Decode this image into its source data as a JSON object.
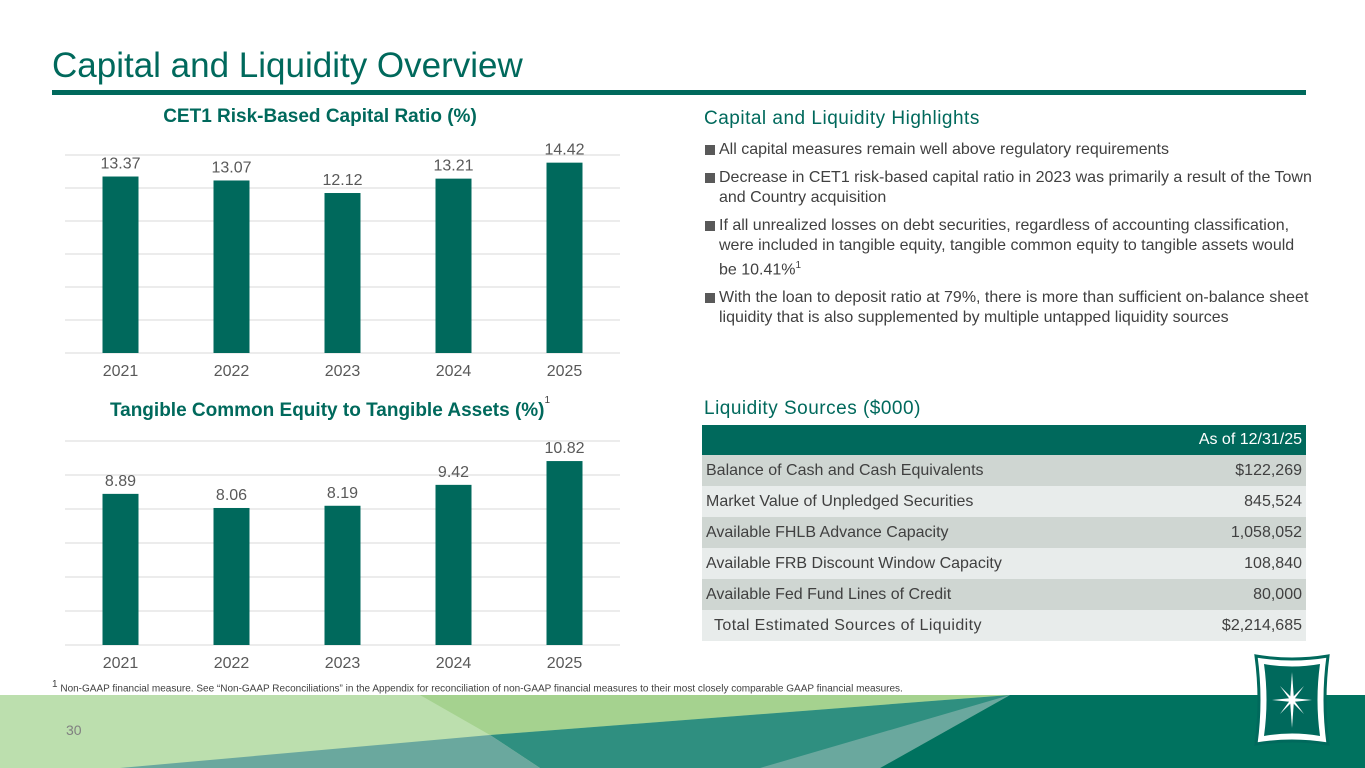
{
  "title": "Capital and Liquidity Overview",
  "chart_data": [
    {
      "type": "bar",
      "title": "CET1 Risk-Based Capital Ratio (%)",
      "categories": [
        "2021",
        "2022",
        "2023",
        "2024",
        "2025"
      ],
      "values": [
        13.37,
        13.07,
        12.12,
        13.21,
        14.42
      ],
      "labels": [
        "13.37",
        "13.07",
        "12.12",
        "13.21",
        "14.42"
      ],
      "ylim": [
        0,
        15
      ],
      "grid": true,
      "color": "#00695c"
    },
    {
      "type": "bar",
      "title": "Tangible Common Equity to Tangible Assets (%)",
      "title_sup": "1",
      "categories": [
        "2021",
        "2022",
        "2023",
        "2024",
        "2025"
      ],
      "values": [
        8.89,
        8.06,
        8.19,
        9.42,
        10.82
      ],
      "labels": [
        "8.89",
        "8.06",
        "8.19",
        "9.42",
        "10.82"
      ],
      "ylim": [
        0,
        12
      ],
      "grid": true,
      "color": "#00695c"
    }
  ],
  "highlights": {
    "title": "Capital and Liquidity Highlights",
    "items": [
      {
        "text": "All capital measures remain well above regulatory requirements"
      },
      {
        "text": "Decrease in CET1 risk-based capital ratio in 2023 was primarily a result of the Town and Country acquisition"
      },
      {
        "text": "If all unrealized losses on debt securities, regardless of accounting classification, were included in tangible equity, tangible common equity to tangible assets would be 10.41%",
        "sup": "1"
      },
      {
        "text": "With the loan to deposit ratio at 79%, there is more than sufficient on-balance sheet liquidity that is also supplemented by multiple untapped liquidity sources"
      }
    ]
  },
  "liquidity": {
    "title": "Liquidity Sources ($000)",
    "header": "As of 12/31/25",
    "rows": [
      {
        "label": "Balance of Cash and Cash Equivalents",
        "value": "$122,269"
      },
      {
        "label": "Market Value of Unpledged Securities",
        "value": "845,524"
      },
      {
        "label": "Available FHLB Advance Capacity",
        "value": "1,058,052"
      },
      {
        "label": "Available FRB Discount Window Capacity",
        "value": "108,840"
      },
      {
        "label": "Available Fed Fund Lines of Credit",
        "value": "80,000"
      },
      {
        "label": "Total Estimated Sources of Liquidity",
        "value": "$2,214,685"
      }
    ]
  },
  "footnote": {
    "sup": "1",
    "text": " Non-GAAP financial measure. See “Non-GAAP Reconciliations” in the Appendix for reconciliation of non-GAAP financial measures to their most closely comparable GAAP financial measures."
  },
  "page_number": "30"
}
